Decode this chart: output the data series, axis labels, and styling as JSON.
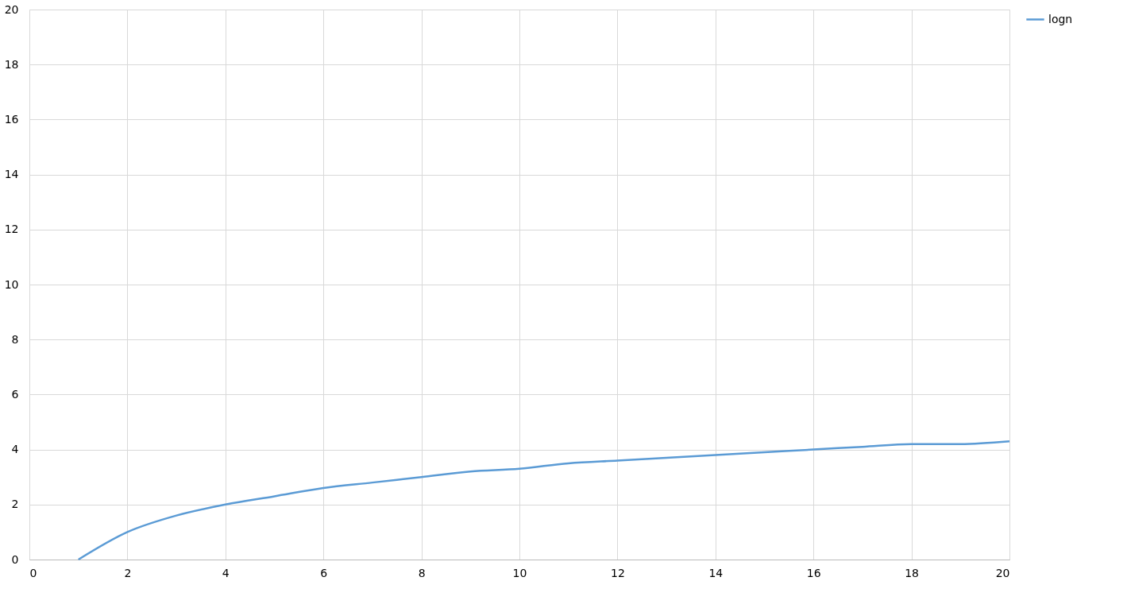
{
  "chart_data": {
    "type": "line",
    "x": [
      1,
      2,
      3,
      4,
      5,
      6,
      7,
      8,
      9,
      10,
      11,
      12,
      13,
      14,
      15,
      16,
      17,
      18,
      19,
      20
    ],
    "series": [
      {
        "name": "logn",
        "color": "#5b9bd5",
        "values": [
          0,
          1,
          1.6,
          2,
          2.3,
          2.6,
          2.8,
          3,
          3.2,
          3.3,
          3.5,
          3.6,
          3.7,
          3.8,
          3.9,
          4,
          4.1,
          4.2,
          4.2,
          4.3
        ]
      }
    ],
    "xlim": [
      0,
      20
    ],
    "xticks": [
      0,
      2,
      4,
      6,
      8,
      10,
      12,
      14,
      16,
      18,
      20
    ],
    "ylim": [
      0,
      20
    ],
    "yticks": [
      0,
      2,
      4,
      6,
      8,
      10,
      12,
      14,
      16,
      18,
      20
    ],
    "grid": true,
    "legend": "right",
    "marker": "none",
    "line_style": "solid"
  }
}
